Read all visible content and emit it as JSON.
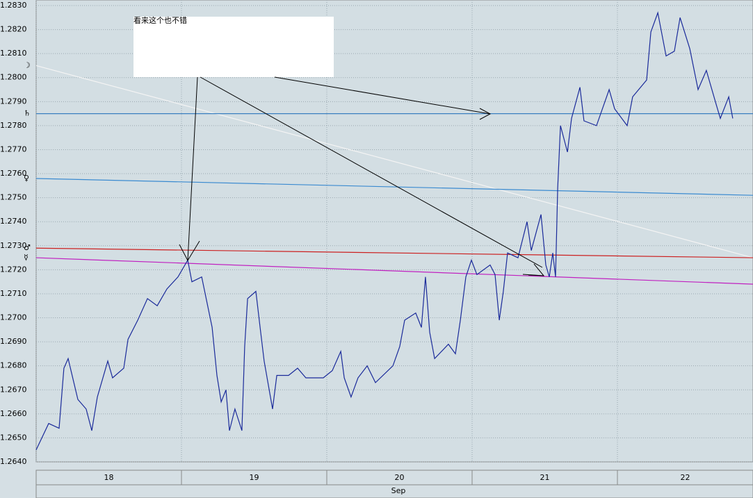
{
  "chart_data": {
    "type": "line",
    "x": [
      18.0,
      18.086,
      18.158,
      18.191,
      18.22,
      18.287,
      18.344,
      18.383,
      18.421,
      18.493,
      18.526,
      18.603,
      18.632,
      18.699,
      18.766,
      18.833,
      18.9,
      18.976,
      19.043,
      19.072,
      19.139,
      19.211,
      19.244,
      19.273,
      19.306,
      19.33,
      19.368,
      19.416,
      19.435,
      19.455,
      19.512,
      19.541,
      19.569,
      19.627,
      19.656,
      19.737,
      19.799,
      19.856,
      19.976,
      20.038,
      20.096,
      20.12,
      20.167,
      20.215,
      20.278,
      20.335,
      20.455,
      20.502,
      20.536,
      20.612,
      20.651,
      20.679,
      20.708,
      20.742,
      20.837,
      20.885,
      20.919,
      20.957,
      20.995,
      21.033,
      21.124,
      21.158,
      21.187,
      21.215,
      21.244,
      21.316,
      21.378,
      21.407,
      21.474,
      21.507,
      21.531,
      21.555,
      21.574,
      21.589,
      21.608,
      21.656,
      21.684,
      21.742,
      21.77,
      21.856,
      21.943,
      21.981,
      22.067,
      22.105,
      22.201,
      22.23,
      22.278,
      22.335,
      22.392,
      22.431,
      22.498,
      22.555,
      22.612,
      22.679,
      22.708,
      22.766,
      22.794
    ],
    "values": [
      1.2645,
      1.2656,
      1.2654,
      1.2679,
      1.2683,
      1.2666,
      1.2662,
      1.2653,
      1.2667,
      1.2682,
      1.2675,
      1.2679,
      1.2691,
      1.2699,
      1.2708,
      1.2705,
      1.2712,
      1.2717,
      1.2724,
      1.2715,
      1.2717,
      1.2696,
      1.2676,
      1.2665,
      1.267,
      1.2653,
      1.2662,
      1.2653,
      1.2688,
      1.2708,
      1.2711,
      1.2696,
      1.2682,
      1.2662,
      1.2676,
      1.2676,
      1.2679,
      1.2675,
      1.2675,
      1.2678,
      1.2686,
      1.2675,
      1.2667,
      1.2675,
      1.268,
      1.2673,
      1.268,
      1.2688,
      1.2699,
      1.2702,
      1.2696,
      1.2717,
      1.2694,
      1.2683,
      1.2689,
      1.2685,
      1.2699,
      1.2717,
      1.2724,
      1.2718,
      1.2722,
      1.2718,
      1.2699,
      1.2711,
      1.2727,
      1.2725,
      1.274,
      1.2728,
      1.2743,
      1.2722,
      1.2717,
      1.2727,
      1.2717,
      1.2754,
      1.278,
      1.2769,
      1.2783,
      1.2796,
      1.2782,
      1.278,
      1.2795,
      1.2787,
      1.278,
      1.2792,
      1.2799,
      1.2819,
      1.2827,
      1.2809,
      1.2811,
      1.2825,
      1.2812,
      1.2795,
      1.2803,
      1.2789,
      1.2783,
      1.2792,
      1.2783
    ],
    "color": "#1a2a9a",
    "xlim": [
      18,
      22.933
    ],
    "xticks": [
      18,
      19,
      20,
      21,
      22
    ],
    "xlabel": "Sep",
    "ylim": [
      1.264,
      1.283
    ],
    "yticks": [
      {
        "value": 1.264,
        "label": "1.2640"
      },
      {
        "value": 1.265,
        "label": "1.2650"
      },
      {
        "value": 1.266,
        "label": "1.2660"
      },
      {
        "value": 1.267,
        "label": "1.2670"
      },
      {
        "value": 1.268,
        "label": "1.2680"
      },
      {
        "value": 1.269,
        "label": "1.2690"
      },
      {
        "value": 1.27,
        "label": "1.2700"
      },
      {
        "value": 1.271,
        "label": "1.2710"
      },
      {
        "value": 1.272,
        "label": "1.2720"
      },
      {
        "value": 1.273,
        "label": "1.2730"
      },
      {
        "value": 1.274,
        "label": "1.2740"
      },
      {
        "value": 1.275,
        "label": "1.2750"
      },
      {
        "value": 1.276,
        "label": "1.2760"
      },
      {
        "value": 1.277,
        "label": "1.2770"
      },
      {
        "value": 1.278,
        "label": "1.2780"
      },
      {
        "value": 1.279,
        "label": "1.2790"
      },
      {
        "value": 1.28,
        "label": "1.2800"
      },
      {
        "value": 1.281,
        "label": "1.2810"
      },
      {
        "value": 1.282,
        "label": "1.2820"
      },
      {
        "value": 1.283,
        "label": "1.2830"
      }
    ],
    "grid": true,
    "lines": [
      {
        "symbol": "☽",
        "color": "#f4f4f4",
        "values": [
          1.2805,
          1.2725
        ]
      },
      {
        "symbol": "♄",
        "color": "#3a7fc0",
        "values": [
          1.2785,
          1.2785
        ]
      },
      {
        "symbol": "♀",
        "color": "#3a8ad0",
        "values": [
          1.2758,
          1.2751
        ]
      },
      {
        "symbol": "♂",
        "color": "#cc2020",
        "values": [
          1.2729,
          1.2725
        ]
      },
      {
        "symbol": "☿",
        "color": "#c020c0",
        "values": [
          1.2725,
          1.2714
        ]
      }
    ],
    "annotation": "看来这个也不错"
  }
}
